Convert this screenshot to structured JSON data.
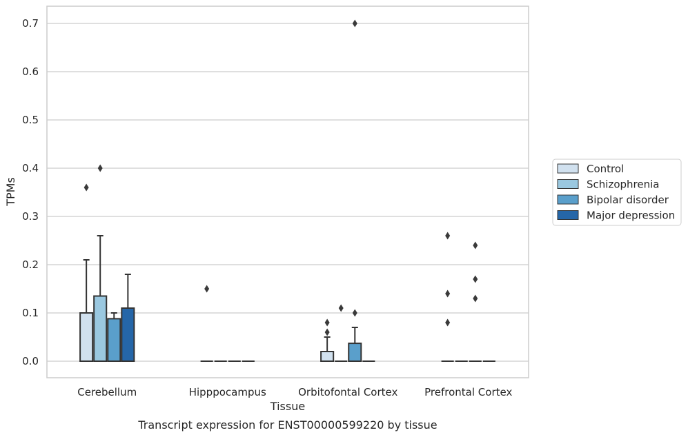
{
  "chart_data": {
    "type": "box",
    "xlabel": "Tissue",
    "ylabel": "TPMs",
    "caption": "Transcript expression for ENST00000599220 by tissue",
    "ylim": [
      -0.035,
      0.735
    ],
    "yticks": [
      0.0,
      0.1,
      0.2,
      0.3,
      0.4,
      0.5,
      0.6,
      0.7
    ],
    "ytick_labels": [
      "0.0",
      "0.1",
      "0.2",
      "0.3",
      "0.4",
      "0.5",
      "0.6",
      "0.7"
    ],
    "grid": "horizontal",
    "legend_position": "right",
    "categories": [
      "Cerebellum",
      "Hipppocampus",
      "Orbitofontal Cortex",
      "Prefrontal Cortex"
    ],
    "series": [
      {
        "name": "Control",
        "color": "#d1e1ef",
        "boxes": [
          {
            "q1": 0.0,
            "median": 0.0,
            "q3": 0.1,
            "whisker_low": 0.0,
            "whisker_high": 0.21,
            "outliers": [
              0.36
            ]
          },
          {
            "q1": 0.0,
            "median": 0.0,
            "q3": 0.0,
            "whisker_low": 0.0,
            "whisker_high": 0.0,
            "outliers": [
              0.15
            ]
          },
          {
            "q1": 0.0,
            "median": 0.0,
            "q3": 0.02,
            "whisker_low": 0.0,
            "whisker_high": 0.05,
            "outliers": [
              0.06,
              0.08
            ]
          },
          {
            "q1": 0.0,
            "median": 0.0,
            "q3": 0.0,
            "whisker_low": 0.0,
            "whisker_high": 0.0,
            "outliers": [
              0.08,
              0.14,
              0.26
            ]
          }
        ]
      },
      {
        "name": "Schizophrenia",
        "color": "#9ac8e0",
        "boxes": [
          {
            "q1": 0.0,
            "median": 0.0,
            "q3": 0.135,
            "whisker_low": 0.0,
            "whisker_high": 0.26,
            "outliers": [
              0.4
            ]
          },
          {
            "q1": 0.0,
            "median": 0.0,
            "q3": 0.0,
            "whisker_low": 0.0,
            "whisker_high": 0.0,
            "outliers": []
          },
          {
            "q1": 0.0,
            "median": 0.0,
            "q3": 0.0,
            "whisker_low": 0.0,
            "whisker_high": 0.0,
            "outliers": [
              0.11
            ]
          },
          {
            "q1": 0.0,
            "median": 0.0,
            "q3": 0.0,
            "whisker_low": 0.0,
            "whisker_high": 0.0,
            "outliers": []
          }
        ]
      },
      {
        "name": "Bipolar disorder",
        "color": "#5a9fcb",
        "boxes": [
          {
            "q1": 0.0,
            "median": 0.0,
            "q3": 0.088,
            "whisker_low": 0.0,
            "whisker_high": 0.1,
            "outliers": []
          },
          {
            "q1": 0.0,
            "median": 0.0,
            "q3": 0.0,
            "whisker_low": 0.0,
            "whisker_high": 0.0,
            "outliers": []
          },
          {
            "q1": 0.0,
            "median": 0.0,
            "q3": 0.037,
            "whisker_low": 0.0,
            "whisker_high": 0.07,
            "outliers": [
              0.1,
              0.7
            ]
          },
          {
            "q1": 0.0,
            "median": 0.0,
            "q3": 0.0,
            "whisker_low": 0.0,
            "whisker_high": 0.0,
            "outliers": [
              0.13,
              0.17,
              0.24
            ]
          }
        ]
      },
      {
        "name": "Major depression",
        "color": "#2566a8",
        "boxes": [
          {
            "q1": 0.0,
            "median": 0.0,
            "q3": 0.11,
            "whisker_low": 0.0,
            "whisker_high": 0.18,
            "outliers": []
          },
          {
            "q1": 0.0,
            "median": 0.0,
            "q3": 0.0,
            "whisker_low": 0.0,
            "whisker_high": 0.0,
            "outliers": []
          },
          {
            "q1": 0.0,
            "median": 0.0,
            "q3": 0.0,
            "whisker_low": 0.0,
            "whisker_high": 0.0,
            "outliers": []
          },
          {
            "q1": 0.0,
            "median": 0.0,
            "q3": 0.0,
            "whisker_low": 0.0,
            "whisker_high": 0.0,
            "outliers": []
          }
        ]
      }
    ]
  }
}
